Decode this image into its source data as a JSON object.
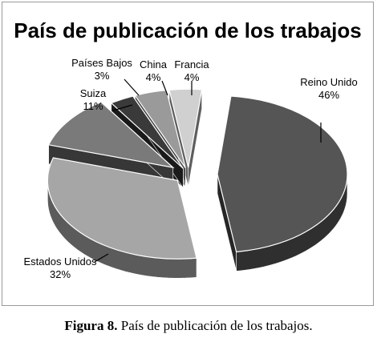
{
  "chart_data": {
    "type": "pie",
    "style": "3d-exploded",
    "title": "País de publicación de los trabajos",
    "slices": [
      {
        "label": "Reino Unido",
        "value": 46,
        "value_label": "46%",
        "color": "#555555"
      },
      {
        "label": "Estados Unidos",
        "value": 32,
        "value_label": "32%",
        "color": "#a6a6a6"
      },
      {
        "label": "Suiza",
        "value": 11,
        "value_label": "11%",
        "color": "#7a7a7a"
      },
      {
        "label": "Países Bajos",
        "value": 3,
        "value_label": "3%",
        "color": "#3a3a3a"
      },
      {
        "label": "China",
        "value": 4,
        "value_label": "4%",
        "color": "#9a9a9a"
      },
      {
        "label": "Francia",
        "value": 4,
        "value_label": "4%",
        "color": "#d0d0d0"
      }
    ],
    "legend": "none"
  },
  "caption": {
    "label": "Figura 8.",
    "text": "País de publicación de los trabajos."
  }
}
